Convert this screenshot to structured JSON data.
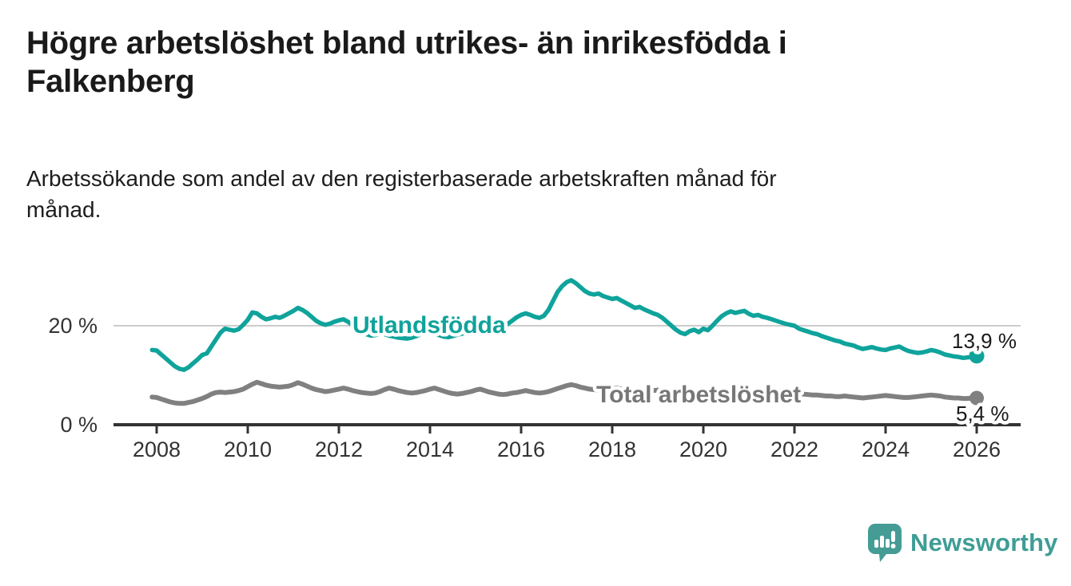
{
  "title": {
    "lines": [
      "Högre arbetslöshet bland utrikes- än inrikesfödda i",
      "Falkenberg"
    ]
  },
  "subtitle": {
    "lines": [
      "Arbetssökande som andel av den registerbaserade arbetskraften månad för",
      "månad."
    ]
  },
  "footer": {
    "brand": "Newsworthy",
    "brand_color": "#3f9d96",
    "logo_icon": "speech-bubble-bar-chart-icon"
  },
  "chart_data": {
    "type": "line",
    "title": "Högre arbetslöshet bland utrikes- än inrikesfödda i Falkenberg",
    "subtitle": "Arbetssökande som andel av den registerbaserade arbetskraften månad för månad.",
    "xlabel": "",
    "ylabel": "%",
    "xlim": [
      2007.9,
      2027.0
    ],
    "ylim": [
      0,
      30
    ],
    "grid": "single-horizontal-gridline-at-20",
    "legend_position": "inline-labels-on-lines",
    "x_axis": {
      "tick_years": [
        2008,
        2010,
        2012,
        2014,
        2016,
        2018,
        2020,
        2022,
        2024,
        2026
      ],
      "tick_labels": [
        "2008",
        "2010",
        "2012",
        "2014",
        "2016",
        "2018",
        "2020",
        "2022",
        "2024",
        "2026"
      ]
    },
    "y_axis": {
      "tick_values": [
        20,
        0
      ],
      "tick_labels": [
        "20 %",
        "0 %"
      ]
    },
    "colors": {
      "utlandsfodda": "#0fa39b",
      "total": "#808080",
      "total_label": "#777777",
      "axis": "#333333",
      "gridline": "#cccccc",
      "value_label": "#1a1a1a"
    },
    "end_labels": {
      "utlandsfodda": "13,9 %",
      "total": "5,4 %"
    },
    "series": [
      {
        "name": "Utlandsfödda",
        "color": "#0fa39b",
        "end_label": "13,9 %",
        "end_value": 13.9,
        "x_start": 2007.9,
        "x_step": 0.1,
        "values": [
          15.1,
          15.0,
          14.2,
          13.4,
          12.6,
          11.8,
          11.3,
          11.1,
          11.6,
          12.4,
          13.2,
          14.1,
          14.4,
          15.8,
          17.2,
          18.6,
          19.4,
          19.2,
          19.0,
          19.3,
          20.2,
          21.2,
          22.7,
          22.5,
          21.8,
          21.3,
          21.5,
          21.8,
          21.6,
          22.0,
          22.5,
          23.0,
          23.6,
          23.2,
          22.6,
          21.8,
          21.0,
          20.5,
          20.2,
          20.4,
          20.8,
          21.1,
          21.3,
          20.8,
          20.1,
          19.4,
          18.8,
          18.3,
          18.0,
          18.1,
          18.4,
          18.3,
          18.0,
          17.8,
          17.6,
          17.5,
          17.4,
          17.6,
          17.9,
          18.3,
          18.6,
          18.8,
          18.5,
          18.1,
          17.8,
          17.7,
          17.9,
          18.2,
          18.4,
          18.6,
          18.8,
          18.7,
          18.9,
          19.2,
          18.9,
          19.1,
          19.4,
          19.8,
          20.3,
          21.0,
          21.7,
          22.2,
          22.5,
          22.2,
          21.8,
          21.6,
          22.0,
          23.2,
          25.0,
          26.8,
          28.0,
          28.8,
          29.2,
          28.6,
          27.8,
          27.0,
          26.5,
          26.3,
          26.5,
          26.0,
          25.7,
          25.4,
          25.6,
          25.1,
          24.6,
          24.1,
          23.6,
          23.8,
          23.3,
          22.9,
          22.5,
          22.2,
          21.6,
          20.8,
          20.0,
          19.2,
          18.6,
          18.3,
          18.9,
          19.2,
          18.7,
          19.4,
          19.1,
          20.0,
          21.0,
          21.9,
          22.5,
          22.9,
          22.6,
          22.8,
          23.0,
          22.4,
          22.0,
          22.2,
          21.8,
          21.6,
          21.3,
          21.0,
          20.7,
          20.4,
          20.2,
          20.0,
          19.4,
          19.1,
          18.8,
          18.5,
          18.3,
          17.9,
          17.6,
          17.3,
          17.0,
          16.8,
          16.4,
          16.2,
          16.0,
          15.6,
          15.3,
          15.5,
          15.7,
          15.4,
          15.2,
          15.1,
          15.4,
          15.6,
          15.8,
          15.3,
          14.9,
          14.7,
          14.5,
          14.6,
          14.8,
          15.1,
          14.9,
          14.6,
          14.2,
          14.0,
          13.8,
          13.7,
          13.5,
          13.6,
          13.7,
          13.9
        ]
      },
      {
        "name": "Total arbetslöshet",
        "color": "#808080",
        "end_label": "5,4 %",
        "end_value": 5.4,
        "x_start": 2007.9,
        "x_step": 0.1,
        "values": [
          5.6,
          5.5,
          5.2,
          4.9,
          4.6,
          4.4,
          4.3,
          4.3,
          4.5,
          4.7,
          5.0,
          5.3,
          5.7,
          6.2,
          6.5,
          6.6,
          6.5,
          6.6,
          6.7,
          6.9,
          7.2,
          7.7,
          8.2,
          8.6,
          8.3,
          8.0,
          7.8,
          7.7,
          7.6,
          7.7,
          7.8,
          8.1,
          8.5,
          8.2,
          7.8,
          7.4,
          7.1,
          6.9,
          6.7,
          6.8,
          7.0,
          7.2,
          7.4,
          7.2,
          6.9,
          6.7,
          6.5,
          6.4,
          6.3,
          6.4,
          6.7,
          7.1,
          7.4,
          7.2,
          6.9,
          6.7,
          6.5,
          6.4,
          6.5,
          6.7,
          6.9,
          7.2,
          7.4,
          7.1,
          6.8,
          6.5,
          6.3,
          6.2,
          6.3,
          6.5,
          6.7,
          7.0,
          7.2,
          6.9,
          6.6,
          6.4,
          6.2,
          6.1,
          6.2,
          6.4,
          6.5,
          6.7,
          6.9,
          6.7,
          6.5,
          6.4,
          6.5,
          6.7,
          7.0,
          7.3,
          7.6,
          7.9,
          8.1,
          7.9,
          7.6,
          7.4,
          7.2,
          7.1,
          7.0,
          7.1,
          7.2,
          7.3,
          7.4,
          7.2,
          7.0,
          6.9,
          6.8,
          6.7,
          6.7,
          6.8,
          6.9,
          7.0,
          6.9,
          6.8,
          6.7,
          6.6,
          6.5,
          6.4,
          6.4,
          6.4,
          6.5,
          6.5,
          6.4,
          6.5,
          6.6,
          6.7,
          6.6,
          6.5,
          6.4,
          6.4,
          6.5,
          6.6,
          6.7,
          6.6,
          6.4,
          6.3,
          6.2,
          6.2,
          6.1,
          6.1,
          6.2,
          6.2,
          6.3,
          6.2,
          6.1,
          6.0,
          6.0,
          5.9,
          5.8,
          5.8,
          5.7,
          5.7,
          5.8,
          5.7,
          5.6,
          5.5,
          5.4,
          5.5,
          5.6,
          5.7,
          5.8,
          5.9,
          5.8,
          5.7,
          5.6,
          5.5,
          5.5,
          5.6,
          5.7,
          5.8,
          5.9,
          6.0,
          5.9,
          5.8,
          5.6,
          5.5,
          5.4,
          5.4,
          5.3,
          5.3,
          5.4,
          5.4
        ]
      }
    ]
  }
}
